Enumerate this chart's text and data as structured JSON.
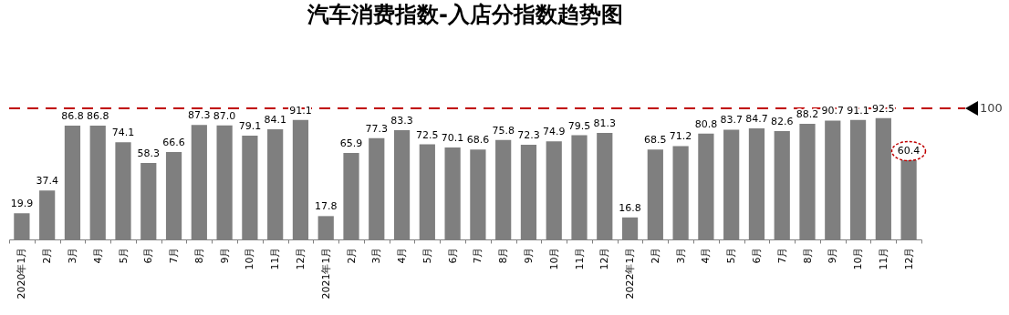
{
  "chart_data": {
    "type": "bar",
    "title": "汽车消费指数-入店分指数趋势图",
    "categories": [
      "2020年1月",
      "2月",
      "3月",
      "4月",
      "5月",
      "6月",
      "7月",
      "8月",
      "9月",
      "10月",
      "11月",
      "12月",
      "2021年1月",
      "2月",
      "3月",
      "4月",
      "5月",
      "6月",
      "7月",
      "8月",
      "9月",
      "10月",
      "11月",
      "12月",
      "2022年1月",
      "2月",
      "3月",
      "4月",
      "5月",
      "6月",
      "7月",
      "8月",
      "9月",
      "10月",
      "11月",
      "12月"
    ],
    "values": [
      19.9,
      37.4,
      86.8,
      86.8,
      74.1,
      58.3,
      66.6,
      87.3,
      87.0,
      79.1,
      84.1,
      91.1,
      17.8,
      65.9,
      77.3,
      83.3,
      72.5,
      70.1,
      68.6,
      75.8,
      72.3,
      74.9,
      79.5,
      81.3,
      16.8,
      68.5,
      71.2,
      80.8,
      83.7,
      84.7,
      82.6,
      88.2,
      90.7,
      91.1,
      92.5,
      60.4
    ],
    "color": "#7f7f7f",
    "value_labels": [
      "19.9",
      "37.4",
      "86.8",
      "86.8",
      "74.1",
      "58.3",
      "66.6",
      "87.3",
      "87.0",
      "79.1",
      "84.1",
      "91.1",
      "17.8",
      "65.9",
      "77.3",
      "83.3",
      "72.5",
      "70.1",
      "68.6",
      "75.8",
      "72.3",
      "74.9",
      "79.5",
      "81.3",
      "16.8",
      "68.5",
      "71.2",
      "80.8",
      "83.7",
      "84.7",
      "82.6",
      "88.2",
      "90.7",
      "91.1",
      "92.5",
      "60.4"
    ],
    "ref_lines": [
      {
        "axis": "y",
        "value": 100,
        "label": "100",
        "color": "#c00000",
        "line_style": "dashed"
      }
    ],
    "grid": false
  }
}
